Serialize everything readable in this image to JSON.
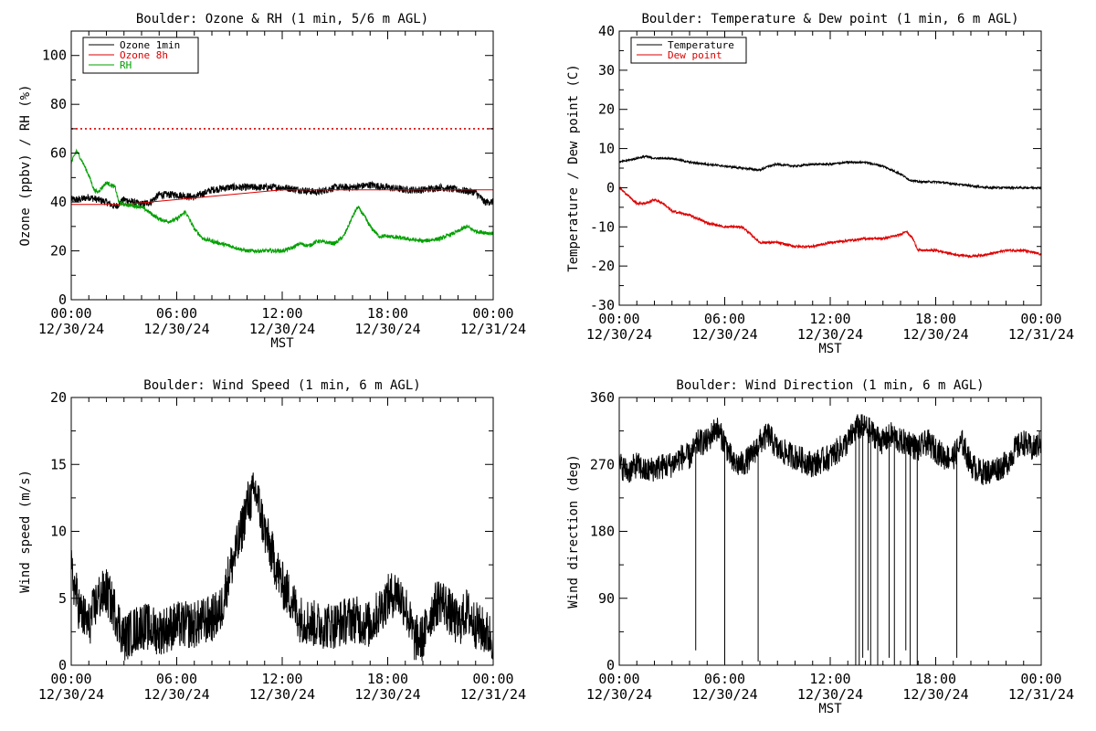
{
  "colors": {
    "black": "#000000",
    "red": "#dd0000",
    "green": "#00a000"
  },
  "chart_data": [
    {
      "type": "line",
      "title": "Boulder: Ozone & RH (1 min, 5/6 m AGL)",
      "xlabel": "MST",
      "ylabel": "Ozone (ppbv) / RH (%)",
      "xlim": [
        0,
        24
      ],
      "ylim": [
        0,
        110
      ],
      "ytick_step": 20,
      "x_ticks": [
        {
          "hour": 0,
          "time": "00:00",
          "date": "12/30/24"
        },
        {
          "hour": 6,
          "time": "06:00",
          "date": "12/30/24"
        },
        {
          "hour": 12,
          "time": "12:00",
          "date": "12/30/24"
        },
        {
          "hour": 18,
          "time": "18:00",
          "date": "12/30/24"
        },
        {
          "hour": 24,
          "time": "00:00",
          "date": "12/31/24"
        }
      ],
      "legend": [
        "Ozone 1min",
        "Ozone 8h",
        "RH"
      ],
      "legend_position": "top-left",
      "reference_line": {
        "y": 70,
        "style": "dotted",
        "color": "#dd0000"
      },
      "series": [
        {
          "name": "Ozone 1min",
          "color": "#000000",
          "noise": 1.5,
          "points": [
            [
              0,
              41
            ],
            [
              0.5,
              41
            ],
            [
              1,
              42
            ],
            [
              2,
              40
            ],
            [
              2.5,
              38
            ],
            [
              3,
              41
            ],
            [
              4,
              39
            ],
            [
              4.5,
              40
            ],
            [
              5,
              43
            ],
            [
              6,
              43
            ],
            [
              7,
              42
            ],
            [
              8,
              45
            ],
            [
              9,
              46
            ],
            [
              10,
              46
            ],
            [
              11,
              46
            ],
            [
              12,
              46
            ],
            [
              13,
              45
            ],
            [
              14,
              44
            ],
            [
              15,
              46
            ],
            [
              16,
              46
            ],
            [
              17,
              47
            ],
            [
              18,
              46
            ],
            [
              19,
              45
            ],
            [
              20,
              45
            ],
            [
              21,
              46
            ],
            [
              22,
              45
            ],
            [
              23,
              44
            ],
            [
              23.5,
              40
            ],
            [
              24,
              40
            ]
          ]
        },
        {
          "name": "Ozone 8h",
          "color": "#dd0000",
          "noise": 0,
          "points": [
            [
              0,
              39
            ],
            [
              3,
              39
            ],
            [
              6,
              41
            ],
            [
              9,
              43
            ],
            [
              12,
              45
            ],
            [
              15,
              45
            ],
            [
              18,
              45
            ],
            [
              21,
              45
            ],
            [
              24,
              45
            ]
          ]
        },
        {
          "name": "RH",
          "color": "#00a000",
          "noise": 0.8,
          "points": [
            [
              0,
              56
            ],
            [
              0.3,
              61
            ],
            [
              0.6,
              57
            ],
            [
              1,
              51
            ],
            [
              1.3,
              45
            ],
            [
              1.5,
              44
            ],
            [
              2,
              48
            ],
            [
              2.5,
              46
            ],
            [
              2.7,
              40
            ],
            [
              3,
              39
            ],
            [
              4,
              38
            ],
            [
              5,
              33
            ],
            [
              5.5,
              32
            ],
            [
              6,
              33
            ],
            [
              6.5,
              36
            ],
            [
              7,
              29
            ],
            [
              7.5,
              25
            ],
            [
              8,
              24
            ],
            [
              9,
              22
            ],
            [
              10,
              20
            ],
            [
              11,
              20
            ],
            [
              12,
              20
            ],
            [
              12.5,
              21
            ],
            [
              13,
              23
            ],
            [
              13.5,
              22
            ],
            [
              14,
              24
            ],
            [
              15,
              23
            ],
            [
              15.5,
              26
            ],
            [
              16,
              34
            ],
            [
              16.3,
              38
            ],
            [
              16.6,
              35
            ],
            [
              17,
              30
            ],
            [
              17.5,
              26
            ],
            [
              18,
              26
            ],
            [
              19,
              25
            ],
            [
              20,
              24
            ],
            [
              21,
              25
            ],
            [
              22,
              28
            ],
            [
              22.5,
              30
            ],
            [
              23,
              28
            ],
            [
              24,
              27
            ]
          ]
        }
      ]
    },
    {
      "type": "line",
      "title": "Boulder: Temperature & Dew point (1 min, 6 m AGL)",
      "xlabel": "MST",
      "ylabel": "Temperature / Dew point (C)",
      "xlim": [
        0,
        24
      ],
      "ylim": [
        -30,
        40
      ],
      "ytick_step": 10,
      "x_ticks": [
        {
          "hour": 0,
          "time": "00:00",
          "date": "12/30/24"
        },
        {
          "hour": 6,
          "time": "06:00",
          "date": "12/30/24"
        },
        {
          "hour": 12,
          "time": "12:00",
          "date": "12/30/24"
        },
        {
          "hour": 18,
          "time": "18:00",
          "date": "12/30/24"
        },
        {
          "hour": 24,
          "time": "00:00",
          "date": "12/31/24"
        }
      ],
      "legend": [
        "Temperature",
        "Dew point"
      ],
      "legend_position": "top-left",
      "series": [
        {
          "name": "Temperature",
          "color": "#000000",
          "noise": 0.25,
          "points": [
            [
              0,
              6.5
            ],
            [
              1,
              7.5
            ],
            [
              1.5,
              8
            ],
            [
              2,
              7.5
            ],
            [
              3,
              7.5
            ],
            [
              4,
              6.5
            ],
            [
              5,
              6
            ],
            [
              6,
              5.5
            ],
            [
              7,
              5
            ],
            [
              8,
              4.5
            ],
            [
              8.5,
              5.5
            ],
            [
              9,
              6
            ],
            [
              10,
              5.5
            ],
            [
              11,
              6
            ],
            [
              12,
              6
            ],
            [
              13,
              6.5
            ],
            [
              14,
              6.5
            ],
            [
              15,
              5.5
            ],
            [
              16,
              3.5
            ],
            [
              16.5,
              2
            ],
            [
              17,
              1.5
            ],
            [
              18,
              1.5
            ],
            [
              19,
              1
            ],
            [
              20,
              0.5
            ],
            [
              21,
              0
            ],
            [
              22,
              0
            ],
            [
              23,
              0
            ],
            [
              24,
              0
            ]
          ]
        },
        {
          "name": "Dew point",
          "color": "#dd0000",
          "noise": 0.3,
          "points": [
            [
              0,
              0
            ],
            [
              0.5,
              -2
            ],
            [
              1,
              -4
            ],
            [
              1.5,
              -4
            ],
            [
              2,
              -3
            ],
            [
              2.5,
              -4
            ],
            [
              3,
              -6
            ],
            [
              4,
              -7
            ],
            [
              5,
              -9
            ],
            [
              6,
              -10
            ],
            [
              7,
              -10
            ],
            [
              7.5,
              -12
            ],
            [
              8,
              -14
            ],
            [
              9,
              -14
            ],
            [
              10,
              -15
            ],
            [
              11,
              -15
            ],
            [
              12,
              -14
            ],
            [
              13,
              -13.5
            ],
            [
              14,
              -13
            ],
            [
              15,
              -13
            ],
            [
              16,
              -12
            ],
            [
              16.3,
              -11
            ],
            [
              16.7,
              -13
            ],
            [
              17,
              -16
            ],
            [
              18,
              -16
            ],
            [
              19,
              -17
            ],
            [
              20,
              -17.5
            ],
            [
              21,
              -17
            ],
            [
              22,
              -16
            ],
            [
              23,
              -16
            ],
            [
              24,
              -17
            ]
          ]
        }
      ]
    },
    {
      "type": "line",
      "title": "Boulder: Wind Speed (1 min, 6 m AGL)",
      "xlabel": "",
      "ylabel": "Wind speed (m/s)",
      "xlim": [
        0,
        24
      ],
      "ylim": [
        0,
        20
      ],
      "ytick_step": 5,
      "x_ticks": [
        {
          "hour": 0,
          "time": "00:00",
          "date": "12/30/24"
        },
        {
          "hour": 6,
          "time": "06:00",
          "date": "12/30/24"
        },
        {
          "hour": 12,
          "time": "12:00",
          "date": "12/30/24"
        },
        {
          "hour": 18,
          "time": "18:00",
          "date": "12/30/24"
        },
        {
          "hour": 24,
          "time": "00:00",
          "date": "12/31/24"
        }
      ],
      "series": [
        {
          "name": "",
          "color": "#000000",
          "noise": 1.8,
          "points": [
            [
              0,
              7
            ],
            [
              0.5,
              4
            ],
            [
              1,
              3
            ],
            [
              1.5,
              5
            ],
            [
              2,
              5.5
            ],
            [
              2.5,
              4
            ],
            [
              3,
              2
            ],
            [
              4,
              3
            ],
            [
              5,
              2.5
            ],
            [
              6,
              3
            ],
            [
              7,
              3
            ],
            [
              8,
              3.5
            ],
            [
              8.5,
              4
            ],
            [
              9,
              7
            ],
            [
              9.5,
              9
            ],
            [
              10,
              12
            ],
            [
              10.5,
              13
            ],
            [
              11,
              10
            ],
            [
              11.5,
              8
            ],
            [
              12,
              6
            ],
            [
              12.5,
              5
            ],
            [
              13,
              3.5
            ],
            [
              14,
              3
            ],
            [
              15,
              3
            ],
            [
              16,
              3.5
            ],
            [
              17,
              3
            ],
            [
              18,
              5
            ],
            [
              18.5,
              5.5
            ],
            [
              19,
              4.5
            ],
            [
              19.5,
              2
            ],
            [
              20,
              2
            ],
            [
              20.5,
              4
            ],
            [
              21,
              5
            ],
            [
              21.5,
              4
            ],
            [
              22,
              3
            ],
            [
              22.5,
              4
            ],
            [
              23,
              3
            ],
            [
              23.5,
              2.5
            ],
            [
              24,
              2
            ]
          ]
        }
      ]
    },
    {
      "type": "line",
      "title": "Boulder: Wind Direction (1 min, 6 m AGL)",
      "xlabel": "MST",
      "ylabel": "Wind direction (deg)",
      "xlim": [
        0,
        24
      ],
      "ylim": [
        0,
        360
      ],
      "ytick_step": 90,
      "x_ticks": [
        {
          "hour": 0,
          "time": "00:00",
          "date": "12/30/24"
        },
        {
          "hour": 6,
          "time": "06:00",
          "date": "12/30/24"
        },
        {
          "hour": 12,
          "time": "12:00",
          "date": "12/30/24"
        },
        {
          "hour": 18,
          "time": "18:00",
          "date": "12/30/24"
        },
        {
          "hour": 24,
          "time": "00:00",
          "date": "12/31/24"
        }
      ],
      "series": [
        {
          "name": "",
          "color": "#000000",
          "noise": 18,
          "points": [
            [
              0,
              270
            ],
            [
              0.5,
              260
            ],
            [
              1,
              270
            ],
            [
              1.5,
              260
            ],
            [
              2,
              265
            ],
            [
              3,
              270
            ],
            [
              3.5,
              280
            ],
            [
              4,
              280
            ],
            [
              4.5,
              300
            ],
            [
              5,
              300
            ],
            [
              5.5,
              320
            ],
            [
              6,
              300
            ],
            [
              6.5,
              270
            ],
            [
              7,
              270
            ],
            [
              7.5,
              280
            ],
            [
              8,
              300
            ],
            [
              8.5,
              310
            ],
            [
              9,
              290
            ],
            [
              10,
              280
            ],
            [
              11,
              270
            ],
            [
              12,
              280
            ],
            [
              12.5,
              290
            ],
            [
              13,
              300
            ],
            [
              13.5,
              320
            ],
            [
              14,
              320
            ],
            [
              14.5,
              310
            ],
            [
              15,
              300
            ],
            [
              15.5,
              310
            ],
            [
              16,
              300
            ],
            [
              16.5,
              300
            ],
            [
              17,
              290
            ],
            [
              17.5,
              300
            ],
            [
              18,
              290
            ],
            [
              18.5,
              280
            ],
            [
              19,
              280
            ],
            [
              19.5,
              300
            ],
            [
              20,
              270
            ],
            [
              20.5,
              260
            ],
            [
              21,
              260
            ],
            [
              22,
              270
            ],
            [
              22.5,
              290
            ],
            [
              23,
              300
            ],
            [
              23.5,
              290
            ],
            [
              24,
              300
            ]
          ]
        }
      ],
      "spikes": [
        [
          4.35,
          20
        ],
        [
          6,
          5
        ],
        [
          7.9,
          5
        ],
        [
          13.45,
          0
        ],
        [
          13.65,
          0
        ],
        [
          13.85,
          10
        ],
        [
          14.15,
          20
        ],
        [
          14.3,
          0
        ],
        [
          14.7,
          0
        ],
        [
          15.35,
          10
        ],
        [
          15.65,
          0
        ],
        [
          16.3,
          20
        ],
        [
          16.55,
          0
        ],
        [
          16.95,
          0
        ],
        [
          19.2,
          10
        ]
      ]
    }
  ]
}
